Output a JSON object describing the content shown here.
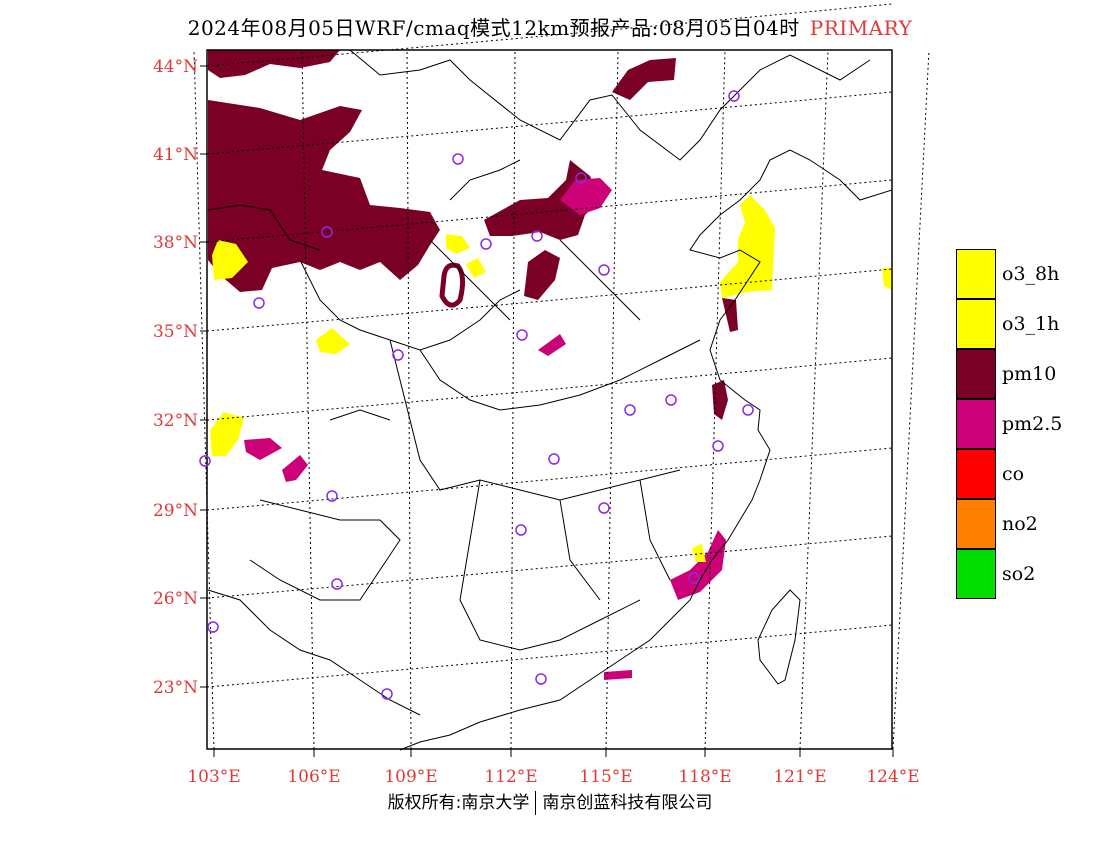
{
  "title": {
    "text": "2024年08月05日WRF/cmaq模式12km预报产品:08月05日04时",
    "tag": "PRIMARY",
    "tag_color": "#e03a3a"
  },
  "map": {
    "lon_range": [
      103,
      124
    ],
    "lat_range": [
      21.2,
      44.5
    ],
    "lon_ticks": [
      "103°E",
      "106°E",
      "109°E",
      "112°E",
      "115°E",
      "118°E",
      "121°E",
      "124°E"
    ],
    "lat_ticks": [
      "44°N",
      "41°N",
      "38°N",
      "35°N",
      "32°N",
      "29°N",
      "26°N",
      "23°N"
    ],
    "tick_color": "#e03a3a",
    "station_marker_color": "#8a2be2"
  },
  "legend": [
    {
      "label": "o3_8h",
      "color": "#ffff00"
    },
    {
      "label": "o3_1h",
      "color": "#ffff00"
    },
    {
      "label": "pm10",
      "color": "#7a0026"
    },
    {
      "label": "pm2.5",
      "color": "#cc0077"
    },
    {
      "label": "co",
      "color": "#ff0000"
    },
    {
      "label": "no2",
      "color": "#ff8000"
    },
    {
      "label": "so2",
      "color": "#00dd00"
    }
  ],
  "footer": {
    "left": "版权所有:南京大学",
    "right": "南京创蓝科技有限公司"
  }
}
